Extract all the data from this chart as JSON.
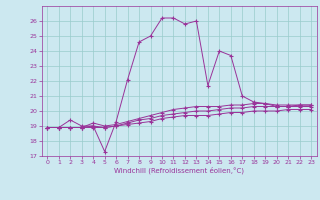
{
  "xlabel": "Windchill (Refroidissement éolien,°C)",
  "background_color": "#cce8f0",
  "grid_color": "#99cccc",
  "line_color": "#993399",
  "xlim": [
    -0.5,
    23.5
  ],
  "ylim": [
    17,
    27
  ],
  "yticks": [
    17,
    18,
    19,
    20,
    21,
    22,
    23,
    24,
    25,
    26
  ],
  "xticks": [
    0,
    1,
    2,
    3,
    4,
    5,
    6,
    7,
    8,
    9,
    10,
    11,
    12,
    13,
    14,
    15,
    16,
    17,
    18,
    19,
    20,
    21,
    22,
    23
  ],
  "series": {
    "line1": {
      "x": [
        0,
        1,
        2,
        3,
        4,
        5,
        6,
        7,
        8,
        9,
        10,
        11,
        12,
        13,
        14,
        15,
        16,
        17,
        18,
        19,
        20,
        21,
        22,
        23
      ],
      "y": [
        18.9,
        18.9,
        19.4,
        19.0,
        19.0,
        17.3,
        19.3,
        22.1,
        24.6,
        25.0,
        26.2,
        26.2,
        25.8,
        26.0,
        21.7,
        24.0,
        23.7,
        21.0,
        20.6,
        20.5,
        20.3,
        20.3,
        20.4,
        20.4
      ]
    },
    "line2": {
      "x": [
        0,
        1,
        2,
        3,
        4,
        5,
        6,
        7,
        8,
        9,
        10,
        11,
        12,
        13,
        14,
        15,
        16,
        17,
        18,
        19,
        20,
        21,
        22,
        23
      ],
      "y": [
        18.9,
        18.9,
        18.9,
        18.9,
        19.2,
        19.0,
        19.1,
        19.3,
        19.5,
        19.7,
        19.9,
        20.1,
        20.2,
        20.3,
        20.3,
        20.3,
        20.4,
        20.4,
        20.5,
        20.5,
        20.4,
        20.4,
        20.4,
        20.4
      ]
    },
    "line3": {
      "x": [
        0,
        1,
        2,
        3,
        4,
        5,
        6,
        7,
        8,
        9,
        10,
        11,
        12,
        13,
        14,
        15,
        16,
        17,
        18,
        19,
        20,
        21,
        22,
        23
      ],
      "y": [
        18.9,
        18.9,
        18.9,
        18.9,
        19.0,
        18.9,
        19.0,
        19.2,
        19.4,
        19.5,
        19.7,
        19.8,
        19.9,
        20.0,
        20.0,
        20.1,
        20.2,
        20.2,
        20.3,
        20.3,
        20.3,
        20.3,
        20.3,
        20.3
      ]
    },
    "line4": {
      "x": [
        0,
        1,
        2,
        3,
        4,
        5,
        6,
        7,
        8,
        9,
        10,
        11,
        12,
        13,
        14,
        15,
        16,
        17,
        18,
        19,
        20,
        21,
        22,
        23
      ],
      "y": [
        18.9,
        18.9,
        18.9,
        18.9,
        18.9,
        18.9,
        19.0,
        19.1,
        19.2,
        19.3,
        19.5,
        19.6,
        19.7,
        19.7,
        19.7,
        19.8,
        19.9,
        19.9,
        20.0,
        20.0,
        20.0,
        20.1,
        20.1,
        20.1
      ]
    }
  }
}
